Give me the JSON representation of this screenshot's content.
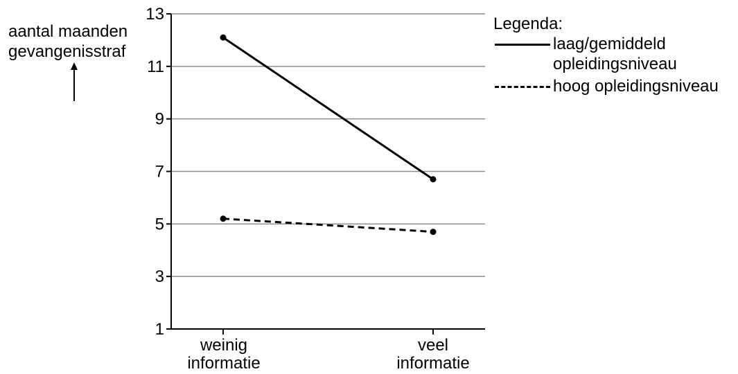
{
  "chart_data": {
    "type": "line",
    "categories": [
      "weinig informatie",
      "veel informatie"
    ],
    "category_lines": [
      [
        "weinig",
        "informatie"
      ],
      [
        "veel",
        "informatie"
      ]
    ],
    "series": [
      {
        "name": "laag/gemiddeld opleidingsniveau",
        "style": "solid",
        "values": [
          12.1,
          6.7
        ]
      },
      {
        "name": "hoog opleidingsniveau",
        "style": "dashed",
        "values": [
          5.2,
          4.7
        ]
      }
    ],
    "ylabel_lines": [
      "aantal maanden",
      "gevangenisstraf"
    ],
    "ylim": [
      1,
      13
    ],
    "yticks": [
      1,
      3,
      5,
      7,
      9,
      11,
      13
    ],
    "grid": true,
    "legend_position": "right",
    "color": "#000000"
  },
  "legend": {
    "title": "Legenda:",
    "items": [
      {
        "lines": [
          "laag/gemiddeld",
          "opleidingsniveau"
        ]
      },
      {
        "lines": [
          "hoog opleidingsniveau"
        ]
      }
    ]
  }
}
